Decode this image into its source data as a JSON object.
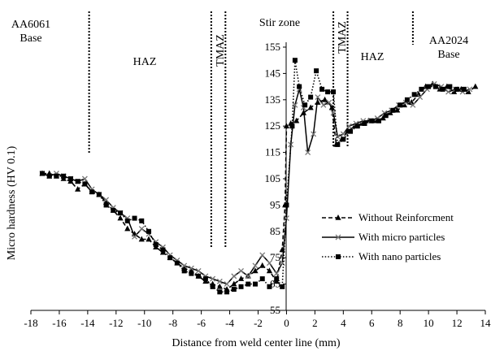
{
  "chart_data": {
    "type": "line",
    "title": "",
    "xlabel": "Distance from weld center line (mm)",
    "ylabel": "Micro hardness (HV 0.1)",
    "xlim": [
      -18,
      14
    ],
    "ylim": [
      55,
      155
    ],
    "xticks": [
      -18,
      -16,
      -14,
      -12,
      -10,
      -8,
      -6,
      -4,
      -2,
      0,
      2,
      4,
      6,
      8,
      10,
      12,
      14
    ],
    "yticks": [
      55,
      65,
      75,
      85,
      95,
      105,
      115,
      125,
      135,
      145,
      155
    ],
    "grid": false,
    "legend_position": "right",
    "annotations": [
      {
        "id": "aa6061",
        "lines": [
          "AA6061",
          "Base"
        ]
      },
      {
        "id": "haz-left",
        "lines": [
          "HAZ"
        ]
      },
      {
        "id": "tmaz-left",
        "lines": [
          "TMAZ"
        ]
      },
      {
        "id": "stir-zone",
        "lines": [
          "Stir zone"
        ]
      },
      {
        "id": "tmaz-right",
        "lines": [
          "TMAZ"
        ]
      },
      {
        "id": "haz-right",
        "lines": [
          "HAZ"
        ]
      },
      {
        "id": "aa2024",
        "lines": [
          "AA2024",
          "Base"
        ]
      }
    ],
    "zone_boundaries_mm": [
      -13.9,
      -5.3,
      -4.3,
      3.3,
      4.3,
      8.9
    ],
    "series": [
      {
        "name": "Without Reinforcment",
        "marker": "triangle",
        "line": "dashed",
        "points": [
          [
            -17.2,
            107
          ],
          [
            -16.7,
            107
          ],
          [
            -16.2,
            106
          ],
          [
            -15.7,
            105
          ],
          [
            -15.2,
            104
          ],
          [
            -14.7,
            101
          ],
          [
            -14.2,
            103
          ],
          [
            -13.7,
            100
          ],
          [
            -13.2,
            99
          ],
          [
            -12.7,
            96
          ],
          [
            -12.2,
            93
          ],
          [
            -11.7,
            90
          ],
          [
            -11.2,
            86
          ],
          [
            -10.7,
            84
          ],
          [
            -10.2,
            82
          ],
          [
            -9.7,
            82
          ],
          [
            -9.2,
            79
          ],
          [
            -8.7,
            77
          ],
          [
            -8.2,
            75
          ],
          [
            -7.7,
            73
          ],
          [
            -7.2,
            71
          ],
          [
            -6.7,
            70
          ],
          [
            -6.2,
            68
          ],
          [
            -5.7,
            66
          ],
          [
            -5.2,
            65
          ],
          [
            -4.7,
            64
          ],
          [
            -4.2,
            63
          ],
          [
            -3.7,
            65
          ],
          [
            -3.2,
            67
          ],
          [
            -2.7,
            68
          ],
          [
            -2.2,
            70
          ],
          [
            -1.7,
            72
          ],
          [
            -1.2,
            70
          ],
          [
            -0.7,
            66
          ],
          [
            -0.3,
            78
          ],
          [
            -0.1,
            95
          ],
          [
            0.0,
            125
          ],
          [
            0.3,
            126
          ],
          [
            0.7,
            127
          ],
          [
            1.2,
            130
          ],
          [
            1.7,
            132
          ],
          [
            2.2,
            134
          ],
          [
            2.7,
            135
          ],
          [
            3.2,
            132
          ],
          [
            3.5,
            118
          ],
          [
            3.9,
            120
          ],
          [
            4.3,
            123
          ],
          [
            4.8,
            125
          ],
          [
            5.3,
            126
          ],
          [
            5.8,
            127
          ],
          [
            6.3,
            127
          ],
          [
            6.8,
            128
          ],
          [
            7.3,
            130
          ],
          [
            7.8,
            131
          ],
          [
            8.3,
            133
          ],
          [
            8.8,
            134
          ],
          [
            9.3,
            137
          ],
          [
            9.8,
            140
          ],
          [
            10.3,
            141
          ],
          [
            10.8,
            139
          ],
          [
            11.3,
            140
          ],
          [
            11.8,
            138
          ],
          [
            12.3,
            139
          ],
          [
            12.8,
            138
          ],
          [
            13.3,
            140
          ]
        ]
      },
      {
        "name": "With micro particles",
        "marker": "x",
        "line": "solid",
        "points": [
          [
            -17.2,
            107
          ],
          [
            -16.7,
            106
          ],
          [
            -16.2,
            107
          ],
          [
            -15.7,
            106
          ],
          [
            -15.2,
            105
          ],
          [
            -14.7,
            104
          ],
          [
            -14.2,
            105
          ],
          [
            -13.7,
            101
          ],
          [
            -13.2,
            99
          ],
          [
            -12.7,
            97
          ],
          [
            -12.2,
            94
          ],
          [
            -11.7,
            92
          ],
          [
            -11.2,
            90
          ],
          [
            -10.7,
            83
          ],
          [
            -10.2,
            86
          ],
          [
            -9.7,
            84
          ],
          [
            -9.2,
            81
          ],
          [
            -8.7,
            79
          ],
          [
            -8.2,
            76
          ],
          [
            -7.7,
            74
          ],
          [
            -7.2,
            72
          ],
          [
            -6.7,
            71
          ],
          [
            -6.2,
            70
          ],
          [
            -5.7,
            68
          ],
          [
            -5.2,
            67
          ],
          [
            -4.7,
            66
          ],
          [
            -4.2,
            65
          ],
          [
            -3.7,
            68
          ],
          [
            -3.2,
            70
          ],
          [
            -2.7,
            68
          ],
          [
            -2.2,
            72
          ],
          [
            -1.7,
            76
          ],
          [
            -1.2,
            73
          ],
          [
            -0.7,
            69
          ],
          [
            -0.3,
            73
          ],
          [
            0.0,
            90
          ],
          [
            0.3,
            118
          ],
          [
            0.6,
            133
          ],
          [
            0.9,
            139
          ],
          [
            1.2,
            132
          ],
          [
            1.5,
            115
          ],
          [
            1.9,
            122
          ],
          [
            2.2,
            136
          ],
          [
            2.6,
            133
          ],
          [
            3.0,
            134
          ],
          [
            3.3,
            130
          ],
          [
            3.6,
            121
          ],
          [
            4.0,
            122
          ],
          [
            4.4,
            125
          ],
          [
            4.9,
            126
          ],
          [
            5.4,
            127
          ],
          [
            5.9,
            127
          ],
          [
            6.4,
            128
          ],
          [
            6.9,
            130
          ],
          [
            7.4,
            131
          ],
          [
            7.9,
            133
          ],
          [
            8.4,
            134
          ],
          [
            8.9,
            133
          ],
          [
            9.4,
            136
          ],
          [
            9.9,
            139
          ],
          [
            10.4,
            141
          ],
          [
            10.9,
            140
          ],
          [
            11.4,
            138
          ],
          [
            11.9,
            139
          ],
          [
            12.4,
            138
          ],
          [
            12.9,
            139
          ]
        ]
      },
      {
        "name": "With nano particles",
        "marker": "square",
        "line": "dotted",
        "points": [
          [
            -17.2,
            107
          ],
          [
            -16.7,
            106
          ],
          [
            -16.2,
            106
          ],
          [
            -15.7,
            106
          ],
          [
            -15.2,
            105
          ],
          [
            -14.7,
            104
          ],
          [
            -14.2,
            103
          ],
          [
            -13.7,
            100
          ],
          [
            -13.2,
            99
          ],
          [
            -12.7,
            95
          ],
          [
            -12.2,
            93
          ],
          [
            -11.7,
            92
          ],
          [
            -11.2,
            89
          ],
          [
            -10.7,
            90
          ],
          [
            -10.2,
            89
          ],
          [
            -9.7,
            85
          ],
          [
            -9.2,
            80
          ],
          [
            -8.7,
            78
          ],
          [
            -8.2,
            75
          ],
          [
            -7.7,
            73
          ],
          [
            -7.2,
            70
          ],
          [
            -6.7,
            69
          ],
          [
            -6.2,
            68
          ],
          [
            -5.7,
            67
          ],
          [
            -5.2,
            64
          ],
          [
            -4.7,
            62
          ],
          [
            -4.2,
            62
          ],
          [
            -3.7,
            63
          ],
          [
            -3.2,
            64
          ],
          [
            -2.7,
            65
          ],
          [
            -2.2,
            65
          ],
          [
            -1.7,
            67
          ],
          [
            -1.2,
            64
          ],
          [
            -0.7,
            67
          ],
          [
            -0.3,
            64
          ],
          [
            0.0,
            95
          ],
          [
            0.4,
            125
          ],
          [
            0.6,
            150
          ],
          [
            0.9,
            140
          ],
          [
            1.3,
            133
          ],
          [
            1.7,
            136
          ],
          [
            2.1,
            146
          ],
          [
            2.5,
            139
          ],
          [
            2.9,
            138
          ],
          [
            3.3,
            138
          ],
          [
            3.6,
            118
          ],
          [
            4.0,
            120
          ],
          [
            4.5,
            123
          ],
          [
            5.0,
            125
          ],
          [
            5.5,
            126
          ],
          [
            6.0,
            127
          ],
          [
            6.5,
            127
          ],
          [
            7.0,
            129
          ],
          [
            7.5,
            131
          ],
          [
            8.0,
            133
          ],
          [
            8.5,
            135
          ],
          [
            9.0,
            137
          ],
          [
            9.5,
            139
          ],
          [
            10.0,
            140
          ],
          [
            10.5,
            140
          ],
          [
            11.0,
            139
          ],
          [
            11.5,
            140
          ],
          [
            12.0,
            139
          ],
          [
            12.5,
            139
          ]
        ]
      }
    ]
  }
}
